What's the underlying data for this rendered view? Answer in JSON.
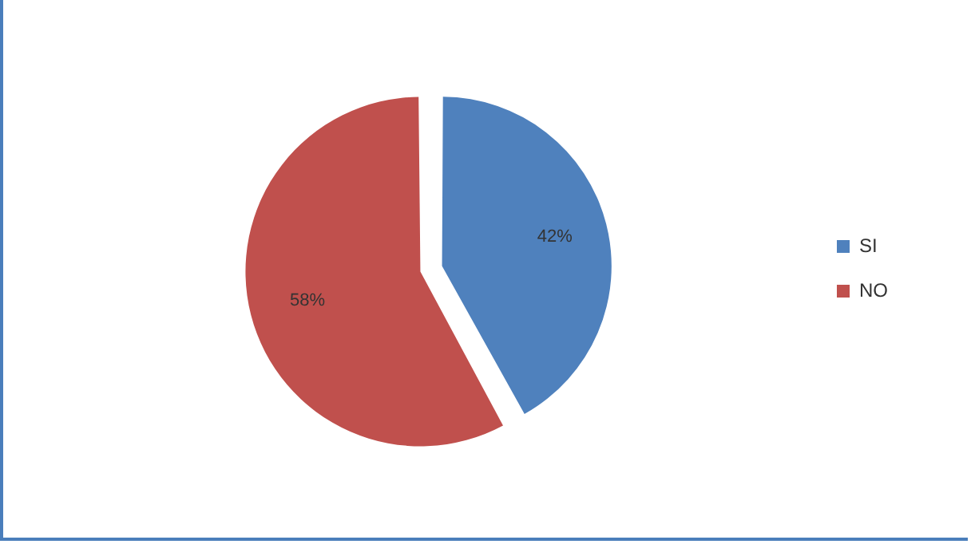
{
  "chart_data": {
    "type": "pie",
    "categories": [
      "SI",
      "NO"
    ],
    "values": [
      42,
      58
    ],
    "colors": [
      "#4f81bd",
      "#c0504d"
    ],
    "value_labels": [
      "42%",
      "58%"
    ],
    "legend": "right"
  }
}
